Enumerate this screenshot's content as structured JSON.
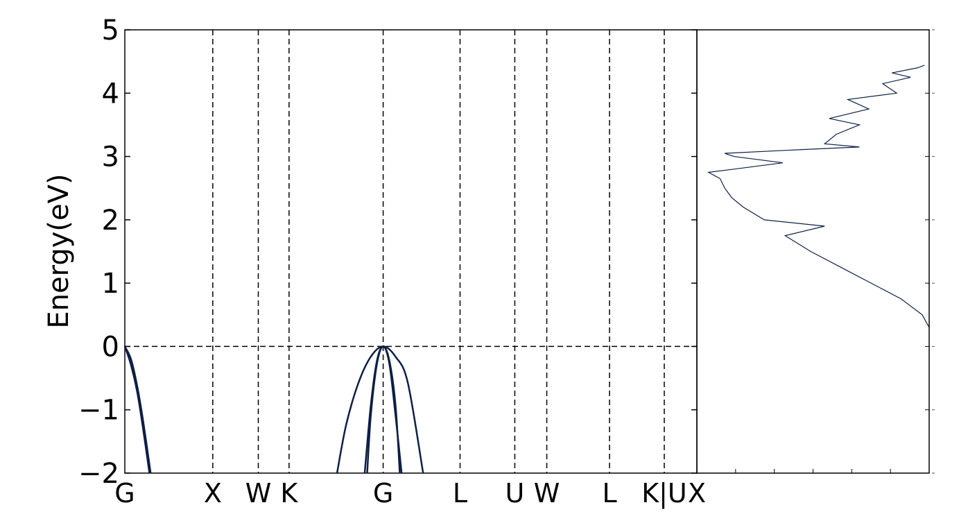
{
  "chart_data": [
    {
      "type": "line",
      "title": "",
      "xlabel": "",
      "ylabel": "Energy(eV)",
      "ylim": [
        -2,
        5
      ],
      "xlim": [
        0,
        9.3
      ],
      "y_ticks": [
        "5",
        "4",
        "3",
        "2",
        "1",
        "0",
        "−2"
      ],
      "y_tick_values": [
        5,
        4,
        3,
        2,
        1,
        0,
        -2
      ],
      "y_tick_minus1": "−1",
      "x_ticks": [
        {
          "label": "G",
          "x": 0.0
        },
        {
          "label": "X",
          "x": 1.43
        },
        {
          "label": "W",
          "x": 2.17
        },
        {
          "label": "K",
          "x": 2.67
        },
        {
          "label": "G",
          "x": 4.2
        },
        {
          "label": "L",
          "x": 5.45
        },
        {
          "label": "U",
          "x": 6.34
        },
        {
          "label": "W",
          "x": 6.86
        },
        {
          "label": "L",
          "x": 7.88
        },
        {
          "label": "K|U",
          "x": 8.77
        },
        {
          "label": "X",
          "x": 9.3
        }
      ],
      "fermi_level": 0,
      "line_color": "#0d1f45",
      "series": [
        {
          "x": [
            0.0,
            0.1,
            0.2,
            0.3,
            0.4
          ],
          "values": [
            0.0,
            -0.29,
            -0.71,
            -1.32,
            -2.0
          ]
        },
        {
          "x": [
            0.0,
            0.1,
            0.2,
            0.3,
            0.42
          ],
          "values": [
            0.0,
            -0.2,
            -0.62,
            -1.19,
            -2.0
          ]
        },
        {
          "x": [
            3.45,
            3.6,
            3.8,
            4.0,
            4.2,
            4.4,
            4.6,
            4.85
          ],
          "values": [
            -2.0,
            -1.23,
            -0.57,
            -0.16,
            0.0,
            -0.16,
            -0.57,
            -2.0
          ]
        },
        {
          "x": [
            3.9,
            4.0,
            4.1,
            4.2,
            4.3,
            4.4,
            4.47
          ],
          "values": [
            -2.0,
            -0.92,
            -0.22,
            0.0,
            -0.22,
            -0.92,
            -2.0
          ]
        },
        {
          "x": [
            3.94,
            4.0,
            4.1,
            4.2,
            4.3,
            4.4,
            4.5
          ],
          "values": [
            -2.0,
            -1.08,
            -0.27,
            0.0,
            -0.27,
            -1.08,
            -2.0
          ]
        }
      ]
    },
    {
      "type": "line",
      "title": "",
      "xlabel": "",
      "ylabel": "",
      "ylim": [
        -2,
        5
      ],
      "xlim": [
        0,
        1
      ],
      "tick_labels_visible": false,
      "line_color": "#0d1f45",
      "series": [
        {
          "y": [
            0.3,
            0.5,
            0.75,
            1.0,
            1.25,
            1.5,
            1.75,
            1.9,
            2.0,
            2.2,
            2.35,
            2.5,
            2.65,
            2.75,
            2.8,
            2.9,
            3.0,
            3.05,
            3.1,
            3.15,
            3.2,
            3.35,
            3.5,
            3.6,
            3.75,
            3.9,
            4.0,
            4.15,
            4.25,
            4.32,
            4.4,
            4.44
          ],
          "values": [
            1.0,
            0.97,
            0.88,
            0.75,
            0.62,
            0.49,
            0.38,
            0.55,
            0.29,
            0.2,
            0.15,
            0.12,
            0.1,
            0.05,
            0.16,
            0.37,
            0.16,
            0.12,
            0.4,
            0.7,
            0.55,
            0.6,
            0.7,
            0.57,
            0.74,
            0.65,
            0.86,
            0.8,
            0.92,
            0.84,
            0.95,
            0.98
          ]
        }
      ]
    }
  ]
}
